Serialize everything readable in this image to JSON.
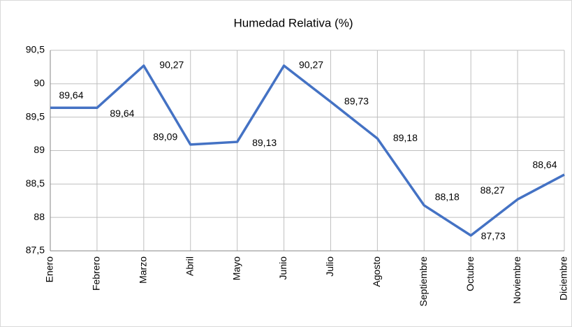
{
  "chart_data": {
    "type": "line",
    "title": "Humedad Relativa (%)",
    "categories": [
      "Enero",
      "Febrero",
      "Marzo",
      "Abril",
      "Mayo",
      "Junio",
      "Julio",
      "Agosto",
      "Septiembre",
      "Octubre",
      "Noviembre",
      "Diciembre"
    ],
    "values": [
      89.64,
      89.64,
      90.27,
      89.09,
      89.13,
      90.27,
      89.73,
      89.18,
      88.18,
      87.73,
      88.27,
      88.64
    ],
    "value_labels": [
      "89,64",
      "89,64",
      "90,27",
      "89,09",
      "89,13",
      "90,27",
      "89,73",
      "89,18",
      "88,18",
      "87,73",
      "88,27",
      "88,64"
    ],
    "color": "#4472c4",
    "ylim": [
      87.5,
      90.5
    ],
    "yticks": [
      {
        "value": 87.5,
        "label": "87,5"
      },
      88,
      {
        "value": 88.5,
        "label": "88,5"
      },
      89,
      {
        "value": 89.5,
        "label": "89,5"
      },
      90,
      {
        "value": 90.5,
        "label": "90,5"
      }
    ],
    "grid": true
  }
}
